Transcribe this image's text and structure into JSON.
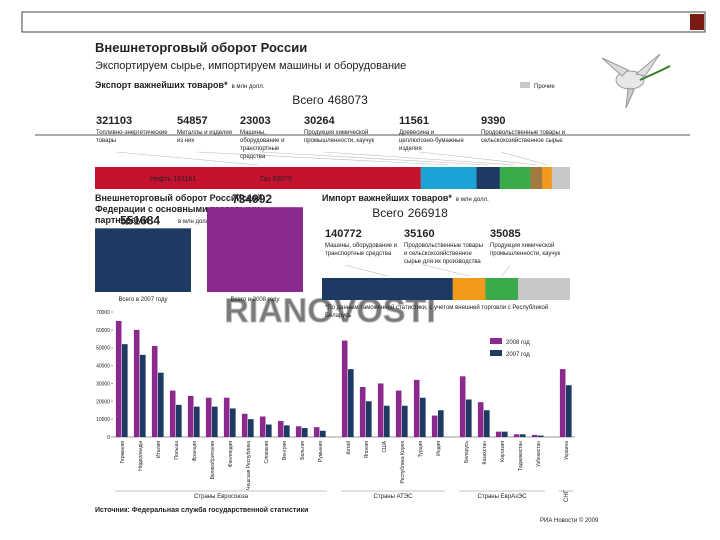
{
  "header": {
    "title": "Внешнеторговый оборот России",
    "subtitle": "Экспортируем сырье, импортируем машины и оборудование",
    "source": "Источник: Федеральная служба государственной статистики",
    "watermark": "RIANOVOSTI",
    "copyright": "РИА Новости © 2009"
  },
  "chart_data": [
    {
      "type": "stacked-hbar",
      "title": "Экспорт важнейших товаров*",
      "unit": "в млн долл.",
      "total": {
        "label": "Всего",
        "value": 468073
      },
      "others": "Прочие",
      "others_color": "#c8c8c8",
      "categories": [
        "Топливно-энергетические товары",
        "Металлы и изделия из них",
        "Машины, оборудование и транспортные средства",
        "Продукция химической промышленности, каучук",
        "Древесина и целлюлозно-бумажные изделия",
        "Продовольственные товары и сельскохозяйственное сырье"
      ],
      "values": [
        321103,
        54857,
        23003,
        30264,
        11561,
        9390
      ],
      "colors": [
        "#c4122f",
        "#1ba3d6",
        "#1d3a63",
        "#3aaa4a",
        "#a2793f",
        "#f39a1d"
      ],
      "annotations": [
        "Нефть 161161",
        "Газ 69075"
      ]
    },
    {
      "type": "bar",
      "title": "Внешнеторговый оборот Российской Федерации с основными торговыми партнерами",
      "unit": "в млн долл.",
      "categories": [
        "Всего в 2007 году",
        "Всего в 2008 году"
      ],
      "values": [
        551684,
        734992
      ],
      "colors": [
        "#1d3a63",
        "#8b2a8c"
      ],
      "ylim": [
        0,
        780000
      ]
    },
    {
      "type": "stacked-hbar",
      "title": "Импорт важнейших товаров*",
      "unit": "в млн долл.",
      "total": {
        "label": "Всего",
        "value": 266918
      },
      "others_color": "#c8c8c8",
      "categories": [
        "Машины, оборудование и транспортные средства",
        "Продовольственные товары и сельскохозяйственное сырье для их производства",
        "Продукция химической промышленности, каучук"
      ],
      "values": [
        140772,
        35160,
        35085
      ],
      "colors": [
        "#1d3a63",
        "#f39a1d",
        "#3aaa4a"
      ],
      "footnote": "*По данным таможенной статистики, с учетом внешней торговли с Республикой Беларусь"
    },
    {
      "type": "grouped-bar",
      "ylim": [
        0,
        70000
      ],
      "yticks": [
        0,
        10000,
        20000,
        30000,
        40000,
        50000,
        60000,
        70000
      ],
      "grid": false,
      "series": [
        {
          "name": "2008 год",
          "color": "#8b2a8c"
        },
        {
          "name": "2007 год",
          "color": "#1d3a63"
        }
      ],
      "groups": [
        {
          "label": "Страны Евросоюза",
          "categories": [
            "Германия",
            "Нидерланды",
            "Италия",
            "Польша",
            "Франция",
            "Великобритания",
            "Финляндия",
            "Чешская Республика",
            "Словакия",
            "Венгрия",
            "Бельгия",
            "Румыния"
          ],
          "values": [
            [
              65000,
              60000,
              51000,
              26000,
              23000,
              22000,
              22000,
              13000,
              11500,
              9000,
              6000,
              5500
            ],
            [
              52000,
              46000,
              36000,
              18000,
              17000,
              17000,
              16000,
              10000,
              7000,
              6500,
              5000,
              3500
            ]
          ]
        },
        {
          "label": "Страны АТЭС",
          "categories": [
            "Китай",
            "Япония",
            "США",
            "Республика Корея",
            "Турция",
            "Индия"
          ],
          "values": [
            [
              54000,
              28000,
              30000,
              26000,
              32000,
              12000
            ],
            [
              38000,
              20000,
              17500,
              17500,
              22000,
              15000
            ]
          ]
        },
        {
          "label": "Страны ЕврАзЭС",
          "categories": [
            "Беларусь",
            "Казахстан",
            "Киргизия",
            "Таджикистан",
            "Узбекистан"
          ],
          "values": [
            [
              34000,
              19500,
              3000,
              1500,
              1200
            ],
            [
              21000,
              15000,
              3000,
              1500,
              800
            ]
          ]
        },
        {
          "label": "СНГ",
          "categories": [
            "Украина"
          ],
          "values": [
            [
              38000
            ],
            [
              29000
            ]
          ]
        }
      ]
    }
  ]
}
